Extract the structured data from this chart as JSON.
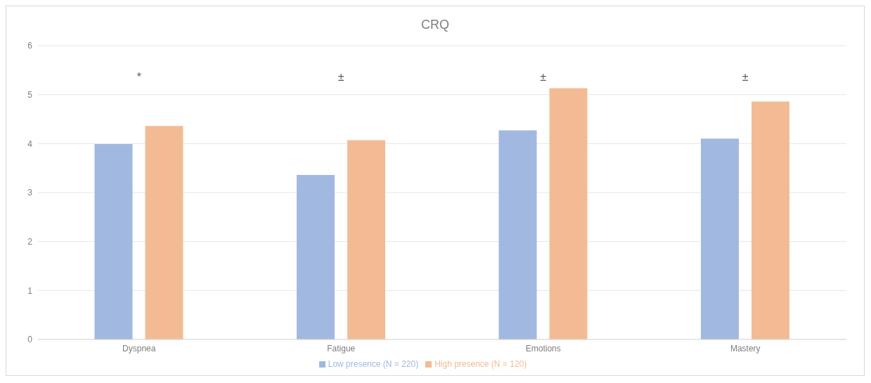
{
  "chart_data": {
    "type": "bar",
    "title": "CRQ",
    "categories": [
      "Dyspnea",
      "Fatigue",
      "Emotions",
      "Mastery"
    ],
    "series": [
      {
        "name": "Low presence (N = 220)",
        "color": "#a1b8e0",
        "values": [
          3.99,
          3.36,
          4.27,
          4.1
        ]
      },
      {
        "name": "High presence (N = 120)",
        "color": "#f3bb94",
        "values": [
          4.36,
          4.07,
          5.13,
          4.86
        ]
      }
    ],
    "ylim": [
      0,
      6
    ],
    "yticks": [
      0,
      1,
      2,
      3,
      4,
      5,
      6
    ],
    "grid": "y",
    "legend": "bottom",
    "annotations": [
      "*",
      "±",
      "±",
      "±"
    ]
  }
}
